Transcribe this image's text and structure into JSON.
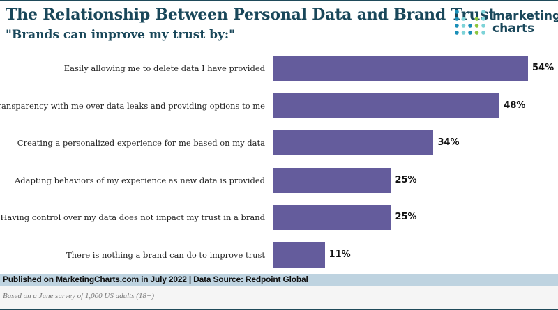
{
  "header": {
    "title": "The Relationship Between Personal Data and Brand Trust",
    "subtitle": "\"Brands can improve my trust by:\""
  },
  "logo": {
    "line1": "marketing",
    "line2": "charts",
    "dot_colors": [
      "#1b8fb8",
      "#7dd3d8",
      "#8cc63f"
    ]
  },
  "chart_data": {
    "type": "bar",
    "orientation": "horizontal",
    "title": "The Relationship Between Personal Data and Brand Trust",
    "subtitle": "\"Brands can improve my trust by:\"",
    "categories": [
      "Easily allowing me to delete data I have provided",
      "Transparency with me over data leaks and providing options to me",
      "Creating a personalized experience for me based on my data",
      "Adapting behaviors of my experience as new data is provided",
      "Having control over my data does not impact my trust in a brand",
      "There is nothing a brand can do to improve trust"
    ],
    "values": [
      54,
      48,
      34,
      25,
      25,
      11
    ],
    "value_labels": [
      "54%",
      "48%",
      "34%",
      "25%",
      "25%",
      "11%"
    ],
    "xlabel": "",
    "ylabel": "",
    "xlim": [
      0,
      54
    ],
    "grid": false,
    "bar_color": "#645c9c"
  },
  "footer": {
    "source": "Published on MarketingCharts.com in July 2022 | Data Source: Redpoint Global",
    "note": "Based on a June survey of 1,000 US adults (18+)"
  }
}
